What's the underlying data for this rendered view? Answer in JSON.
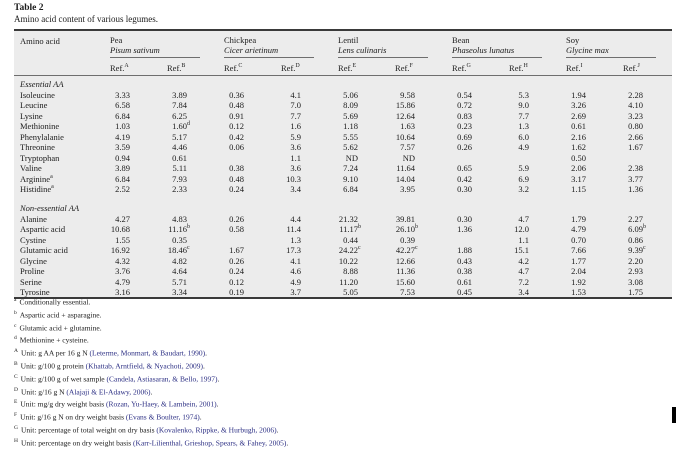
{
  "table": {
    "label": "Table 2",
    "caption": "Amino acid content of various legumes.",
    "columns": {
      "amino_acid_header": "Amino acid",
      "ref_label": "Ref.",
      "groups": [
        {
          "name": "Pea",
          "species": "Pisum sativum",
          "refs": [
            "A",
            "B"
          ]
        },
        {
          "name": "Chickpea",
          "species": "Cicer arietinum",
          "refs": [
            "C",
            "D"
          ]
        },
        {
          "name": "Lentil",
          "species": "Lens culinaris",
          "refs": [
            "E",
            "F"
          ]
        },
        {
          "name": "Bean",
          "species": "Phaseolus lunatus",
          "refs": [
            "G",
            "H"
          ]
        },
        {
          "name": "Soy",
          "species": "Glycine max",
          "refs": [
            "I",
            "J"
          ]
        }
      ]
    },
    "sections": [
      {
        "title": "Essential AA",
        "rows": [
          {
            "name": "Isoleucine",
            "values": [
              "3.33",
              "3.89",
              "0.36",
              "4.1",
              "5.06",
              "9.58",
              "0.54",
              "5.3",
              "1.94",
              "2.28"
            ]
          },
          {
            "name": "Leucine",
            "values": [
              "6.58",
              "7.84",
              "0.48",
              "7.0",
              "8.09",
              "15.86",
              "0.72",
              "9.0",
              "3.26",
              "4.10"
            ]
          },
          {
            "name": "Lysine",
            "values": [
              "6.84",
              "6.25",
              "0.91",
              "7.7",
              "5.69",
              "12.64",
              "0.83",
              "7.7",
              "2.69",
              "3.23"
            ]
          },
          {
            "name": "Methionine",
            "values": [
              "1.03",
              "1.60^d",
              "0.12",
              "1.6",
              "1.18",
              "1.63",
              "0.23",
              "1.3",
              "0.61",
              "0.80"
            ]
          },
          {
            "name": "Phenylalanie",
            "values": [
              "4.19",
              "5.17",
              "0.42",
              "5.9",
              "5.55",
              "10.64",
              "0.69",
              "6.0",
              "2.16",
              "2.66"
            ]
          },
          {
            "name": "Threonine",
            "values": [
              "3.59",
              "4.46",
              "0.06",
              "3.6",
              "5.62",
              "7.57",
              "0.26",
              "4.9",
              "1.62",
              "1.67"
            ]
          },
          {
            "name": "Tryptophan",
            "values": [
              "0.94",
              "0.61",
              "",
              "1.1",
              "ND",
              "ND",
              "",
              "",
              "0.50",
              ""
            ]
          },
          {
            "name": "Valine",
            "values": [
              "3.89",
              "5.11",
              "0.38",
              "3.6",
              "7.24",
              "11.64",
              "0.65",
              "5.9",
              "2.06",
              "2.38"
            ]
          },
          {
            "name": "Arginine^a",
            "values": [
              "6.84",
              "7.93",
              "0.48",
              "10.3",
              "9.10",
              "14.04",
              "0.42",
              "6.9",
              "3.17",
              "3.77"
            ]
          },
          {
            "name": "Histidine^a",
            "values": [
              "2.52",
              "2.33",
              "0.24",
              "3.4",
              "6.84",
              "3.95",
              "0.30",
              "3.2",
              "1.15",
              "1.36"
            ]
          }
        ]
      },
      {
        "title": "Non-essential AA",
        "rows": [
          {
            "name": "Alanine",
            "values": [
              "4.27",
              "4.83",
              "0.26",
              "4.4",
              "21.32",
              "39.81",
              "0.30",
              "4.7",
              "1.79",
              "2.27"
            ]
          },
          {
            "name": "Aspartic acid",
            "values": [
              "10.68",
              "11.16^b",
              "0.58",
              "11.4",
              "11.17^b",
              "26.10^b",
              "1.36",
              "12.0",
              "4.79",
              "6.09^b"
            ]
          },
          {
            "name": "Cystine",
            "values": [
              "1.55",
              "0.35",
              "",
              "1.3",
              "0.44",
              "0.39",
              "",
              "1.1",
              "0.70",
              "0.86"
            ]
          },
          {
            "name": "Glutamic acid",
            "values": [
              "16.92",
              "18.46^c",
              "1.67",
              "17.3",
              "24.22^c",
              "42.27^c",
              "1.88",
              "15.1",
              "7.66",
              "9.39^c"
            ]
          },
          {
            "name": "Glycine",
            "values": [
              "4.32",
              "4.82",
              "0.26",
              "4.1",
              "10.22",
              "12.66",
              "0.43",
              "4.2",
              "1.77",
              "2.20"
            ]
          },
          {
            "name": "Proline",
            "values": [
              "3.76",
              "4.64",
              "0.24",
              "4.6",
              "8.88",
              "11.36",
              "0.38",
              "4.7",
              "2.04",
              "2.93"
            ]
          },
          {
            "name": "Serine",
            "values": [
              "4.79",
              "5.71",
              "0.12",
              "4.9",
              "11.20",
              "15.60",
              "0.61",
              "7.2",
              "1.92",
              "3.08"
            ]
          },
          {
            "name": "Tyrosine",
            "values": [
              "3.16",
              "3.34",
              "0.19",
              "3.7",
              "5.05",
              "7.53",
              "0.45",
              "3.4",
              "1.53",
              "1.75"
            ]
          }
        ]
      }
    ]
  },
  "footnotes": [
    {
      "sup": "a",
      "text": "Conditionally essential.",
      "citation": "",
      "after": ""
    },
    {
      "sup": "b",
      "text": "Aspartic acid + asparagine.",
      "citation": "",
      "after": ""
    },
    {
      "sup": "c",
      "text": "Glutamic acid + glutamine.",
      "citation": "",
      "after": ""
    },
    {
      "sup": "d",
      "text": "Methionine + cysteine.",
      "citation": "",
      "after": ""
    },
    {
      "sup": "A",
      "text": "Unit: g AA per 16 g N ",
      "citation": "(Leterme, Monmart, & Baudart, 1990)",
      "after": "."
    },
    {
      "sup": "B",
      "text": "Unit: g/100 g protein ",
      "citation": "(Khattab, Arntfield, & Nyachoti, 2009)",
      "after": "."
    },
    {
      "sup": "C",
      "text": "Unit: g/100 g of wet sample ",
      "citation": "(Candela, Astiasaran, & Bello, 1997)",
      "after": "."
    },
    {
      "sup": "D",
      "text": "Unit: g/16 g N ",
      "citation": "(Alajaji & El-Adawy, 2006)",
      "after": "."
    },
    {
      "sup": "E",
      "text": "Unit: mg/g dry weight basis ",
      "citation": "(Rozan, Yu-Haey, & Lambein, 2001)",
      "after": "."
    },
    {
      "sup": "F",
      "text": "Unit: g/16 g N on dry weight basis ",
      "citation": "(Evans & Boulter, 1974)",
      "after": "."
    },
    {
      "sup": "G",
      "text": "Unit: percentage of total weight on dry basis ",
      "citation": "(Kovalenko, Rippke, & Hurbugh, 2006)",
      "after": "."
    },
    {
      "sup": "H",
      "text": "Unit: percentage on dry weight basis ",
      "citation": "(Karr-Lilienthal, Grieshop, Spears, & Fahey, 2005)",
      "after": "."
    }
  ],
  "colors": {
    "table_background": "#ececec",
    "rule_dark": "#3a3a3a",
    "rule_light": "#6e6e6e",
    "text": "#1b1b1b",
    "citation_link": "#2b2e83"
  }
}
